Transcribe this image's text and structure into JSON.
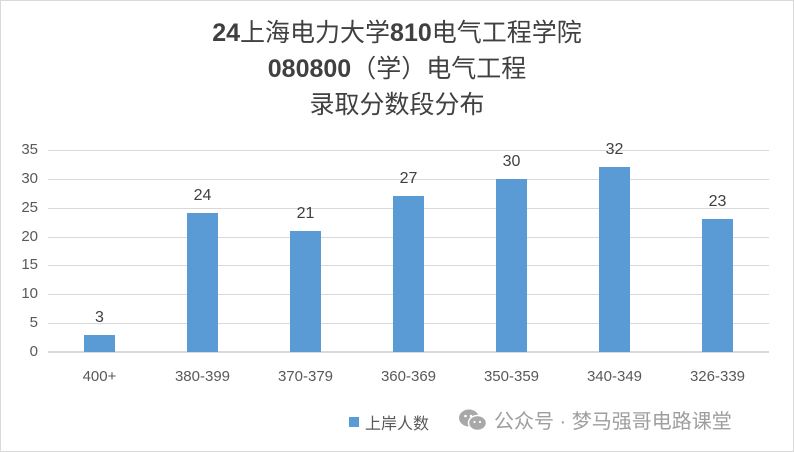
{
  "chart_data": {
    "type": "bar",
    "title": "24上海电力大学810电气工程学院 080800（学）电气工程 录取分数段分布",
    "title_lines": [
      "24上海电力大学810电气工程学院",
      "080800（学）电气工程",
      "录取分数段分布"
    ],
    "categories": [
      "400+",
      "380-399",
      "370-379",
      "360-369",
      "350-359",
      "340-349",
      "326-339"
    ],
    "series": [
      {
        "name": "上岸人数",
        "values": [
          3,
          24,
          21,
          27,
          30,
          32,
          23
        ],
        "color": "#5b9bd5"
      }
    ],
    "xlabel": "",
    "ylabel": "",
    "ylim": [
      0,
      35
    ],
    "yticks": [
      0,
      5,
      10,
      15,
      20,
      25,
      30,
      35
    ],
    "grid": true,
    "legend_position": "bottom",
    "data_labels": true
  },
  "title": {
    "line1_prefix": "24",
    "line1_mid": "上海电力大学",
    "line1_num": "810",
    "line1_suffix": "电气工程学院",
    "line2_num": "080800",
    "line2_suffix": "（学）电气工程",
    "line3": "录取分数段分布"
  },
  "legend": {
    "label": "上岸人数"
  },
  "watermark": {
    "icon": "wechat-icon",
    "text": "公众号 · 梦马强哥电路课堂"
  }
}
